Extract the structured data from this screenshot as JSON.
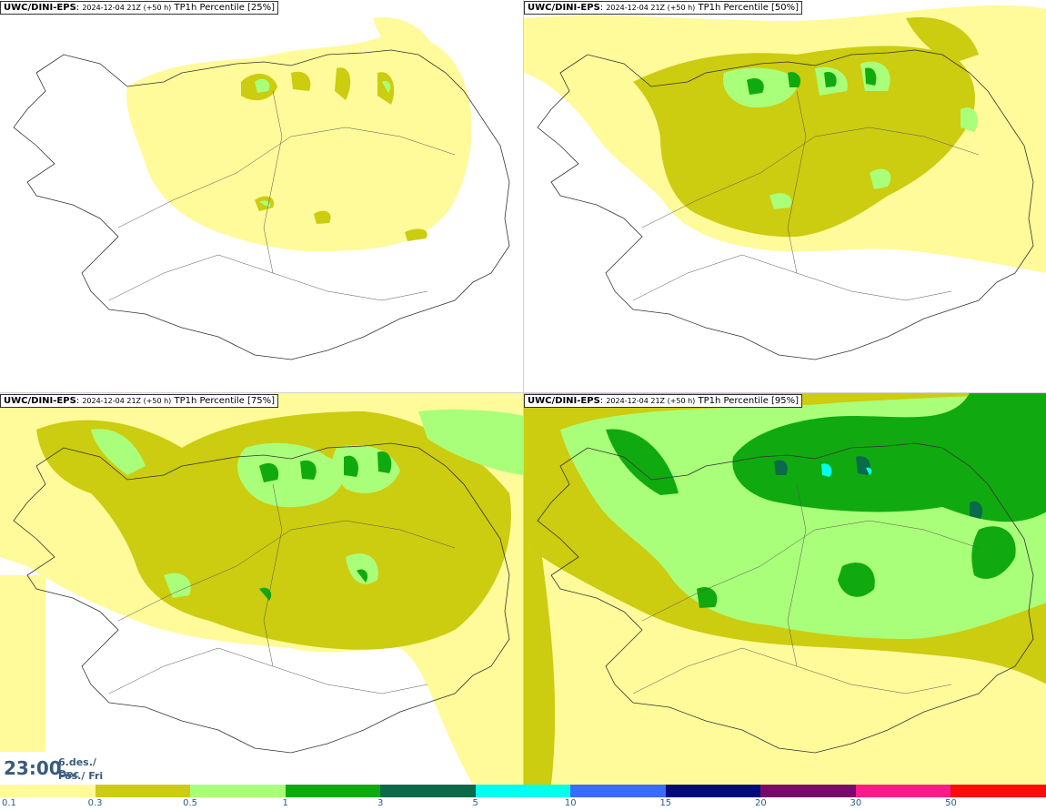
{
  "panels": [
    {
      "model": "UWC/DINI-EPS",
      "run": "2024-12-04 21Z (+50 h)",
      "field": "TP1h Percentile [25%]"
    },
    {
      "model": "UWC/DINI-EPS",
      "run": "2024-12-04 21Z (+50 h)",
      "field": "TP1h Percentile [50%]"
    },
    {
      "model": "UWC/DINI-EPS",
      "run": "2024-12-04 21Z (+50 h)",
      "field": "TP1h Percentile [75%]"
    },
    {
      "model": "UWC/DINI-EPS",
      "run": "2024-12-04 21Z (+50 h)",
      "field": "TP1h Percentile [95%]"
    }
  ],
  "valid_time": {
    "time": "23:00",
    "date_line1": "6.des./ Dec",
    "date_line2": "Fös./ Fri"
  },
  "colorbar": {
    "colors": [
      "#fffa9a",
      "#cccc10",
      "#aaff7a",
      "#10aa10",
      "#0a6a4a",
      "#00ffee",
      "#3a6aff",
      "#000a7a",
      "#7a0a6a",
      "#ff1a8a",
      "#ff0a0a"
    ],
    "labels": [
      "0.1",
      "0.3",
      "0.5",
      "1",
      "3",
      "5",
      "10",
      "15",
      "20",
      "30",
      "50"
    ]
  }
}
